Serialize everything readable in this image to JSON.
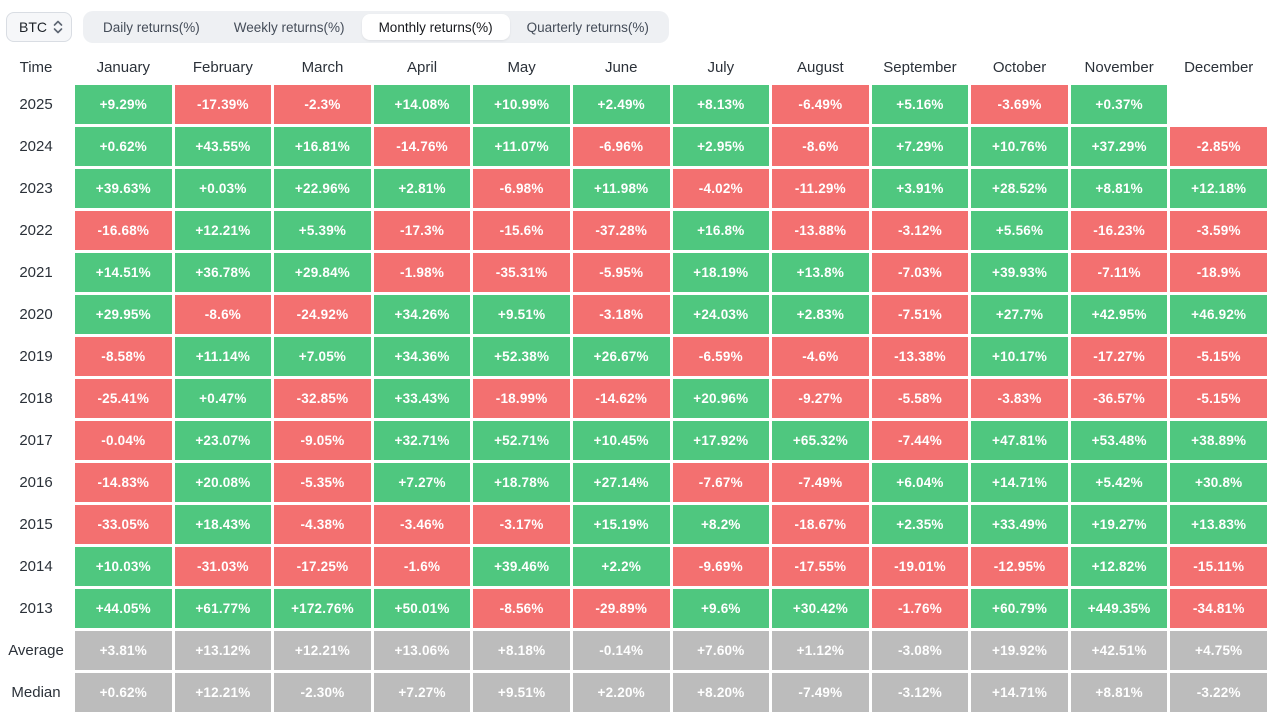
{
  "toolbar": {
    "coin": "BTC",
    "tabs": [
      {
        "label": "Daily returns(%)",
        "active": false
      },
      {
        "label": "Weekly returns(%)",
        "active": false
      },
      {
        "label": "Monthly returns(%)",
        "active": true
      },
      {
        "label": "Quarterly returns(%)",
        "active": false
      }
    ]
  },
  "colors": {
    "positive": "#4fc77f",
    "negative": "#f37070",
    "neutral": "#bcbcbc"
  },
  "chart_data": {
    "type": "heatmap",
    "title": "BTC Monthly returns(%)",
    "columns": [
      "Time",
      "January",
      "February",
      "March",
      "April",
      "May",
      "June",
      "July",
      "August",
      "September",
      "October",
      "November",
      "December"
    ],
    "rows": [
      {
        "label": "2025",
        "kind": "year",
        "values": [
          "+9.29%",
          "-17.39%",
          "-2.3%",
          "+14.08%",
          "+10.99%",
          "+2.49%",
          "+8.13%",
          "-6.49%",
          "+5.16%",
          "-3.69%",
          "+0.37%",
          ""
        ]
      },
      {
        "label": "2024",
        "kind": "year",
        "values": [
          "+0.62%",
          "+43.55%",
          "+16.81%",
          "-14.76%",
          "+11.07%",
          "-6.96%",
          "+2.95%",
          "-8.6%",
          "+7.29%",
          "+10.76%",
          "+37.29%",
          "-2.85%"
        ]
      },
      {
        "label": "2023",
        "kind": "year",
        "values": [
          "+39.63%",
          "+0.03%",
          "+22.96%",
          "+2.81%",
          "-6.98%",
          "+11.98%",
          "-4.02%",
          "-11.29%",
          "+3.91%",
          "+28.52%",
          "+8.81%",
          "+12.18%"
        ]
      },
      {
        "label": "2022",
        "kind": "year",
        "values": [
          "-16.68%",
          "+12.21%",
          "+5.39%",
          "-17.3%",
          "-15.6%",
          "-37.28%",
          "+16.8%",
          "-13.88%",
          "-3.12%",
          "+5.56%",
          "-16.23%",
          "-3.59%"
        ]
      },
      {
        "label": "2021",
        "kind": "year",
        "values": [
          "+14.51%",
          "+36.78%",
          "+29.84%",
          "-1.98%",
          "-35.31%",
          "-5.95%",
          "+18.19%",
          "+13.8%",
          "-7.03%",
          "+39.93%",
          "-7.11%",
          "-18.9%"
        ]
      },
      {
        "label": "2020",
        "kind": "year",
        "values": [
          "+29.95%",
          "-8.6%",
          "-24.92%",
          "+34.26%",
          "+9.51%",
          "-3.18%",
          "+24.03%",
          "+2.83%",
          "-7.51%",
          "+27.7%",
          "+42.95%",
          "+46.92%"
        ]
      },
      {
        "label": "2019",
        "kind": "year",
        "values": [
          "-8.58%",
          "+11.14%",
          "+7.05%",
          "+34.36%",
          "+52.38%",
          "+26.67%",
          "-6.59%",
          "-4.6%",
          "-13.38%",
          "+10.17%",
          "-17.27%",
          "-5.15%"
        ]
      },
      {
        "label": "2018",
        "kind": "year",
        "values": [
          "-25.41%",
          "+0.47%",
          "-32.85%",
          "+33.43%",
          "-18.99%",
          "-14.62%",
          "+20.96%",
          "-9.27%",
          "-5.58%",
          "-3.83%",
          "-36.57%",
          "-5.15%"
        ]
      },
      {
        "label": "2017",
        "kind": "year",
        "values": [
          "-0.04%",
          "+23.07%",
          "-9.05%",
          "+32.71%",
          "+52.71%",
          "+10.45%",
          "+17.92%",
          "+65.32%",
          "-7.44%",
          "+47.81%",
          "+53.48%",
          "+38.89%"
        ]
      },
      {
        "label": "2016",
        "kind": "year",
        "values": [
          "-14.83%",
          "+20.08%",
          "-5.35%",
          "+7.27%",
          "+18.78%",
          "+27.14%",
          "-7.67%",
          "-7.49%",
          "+6.04%",
          "+14.71%",
          "+5.42%",
          "+30.8%"
        ]
      },
      {
        "label": "2015",
        "kind": "year",
        "values": [
          "-33.05%",
          "+18.43%",
          "-4.38%",
          "-3.46%",
          "-3.17%",
          "+15.19%",
          "+8.2%",
          "-18.67%",
          "+2.35%",
          "+33.49%",
          "+19.27%",
          "+13.83%"
        ]
      },
      {
        "label": "2014",
        "kind": "year",
        "values": [
          "+10.03%",
          "-31.03%",
          "-17.25%",
          "-1.6%",
          "+39.46%",
          "+2.2%",
          "-9.69%",
          "-17.55%",
          "-19.01%",
          "-12.95%",
          "+12.82%",
          "-15.11%"
        ]
      },
      {
        "label": "2013",
        "kind": "year",
        "values": [
          "+44.05%",
          "+61.77%",
          "+172.76%",
          "+50.01%",
          "-8.56%",
          "-29.89%",
          "+9.6%",
          "+30.42%",
          "-1.76%",
          "+60.79%",
          "+449.35%",
          "-34.81%"
        ]
      },
      {
        "label": "Average",
        "kind": "summary",
        "values": [
          "+3.81%",
          "+13.12%",
          "+12.21%",
          "+13.06%",
          "+8.18%",
          "-0.14%",
          "+7.60%",
          "+1.12%",
          "-3.08%",
          "+19.92%",
          "+42.51%",
          "+4.75%"
        ]
      },
      {
        "label": "Median",
        "kind": "summary",
        "values": [
          "+0.62%",
          "+12.21%",
          "-2.30%",
          "+7.27%",
          "+9.51%",
          "+2.20%",
          "+8.20%",
          "-7.49%",
          "-3.12%",
          "+14.71%",
          "+8.81%",
          "-3.22%"
        ]
      }
    ]
  }
}
